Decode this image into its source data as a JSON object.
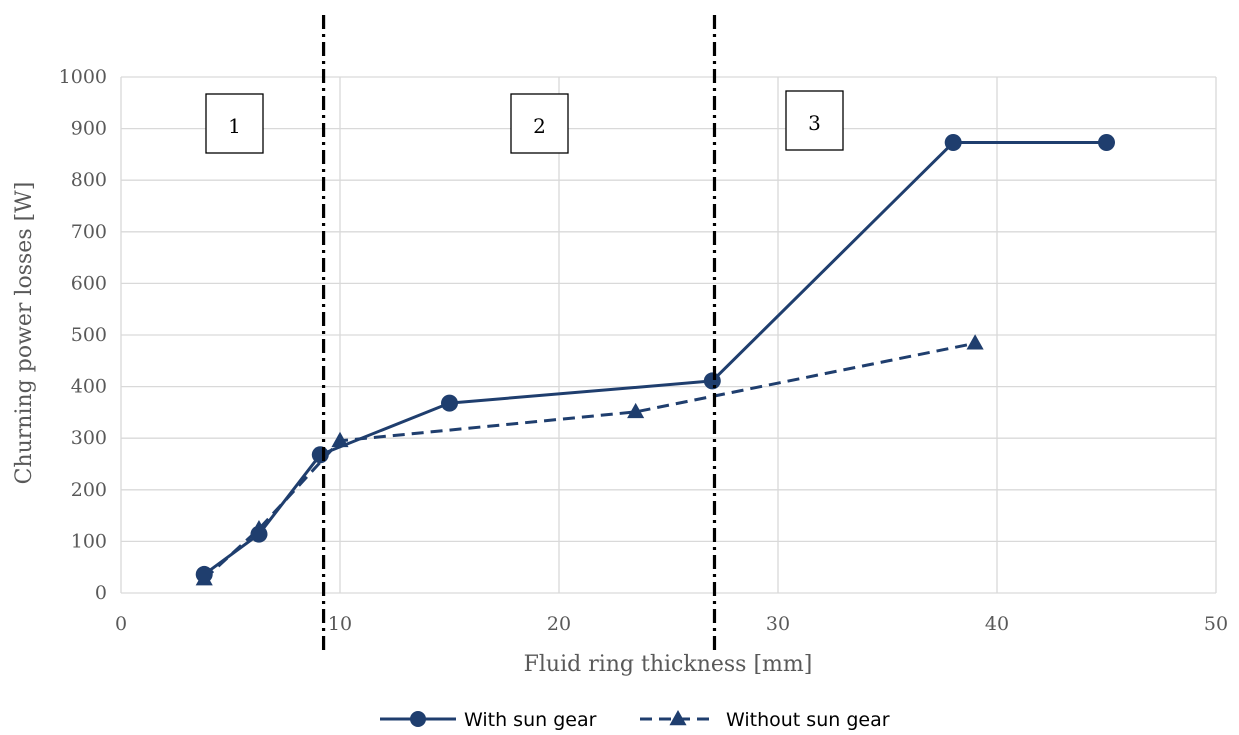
{
  "chart_data": {
    "type": "line",
    "xlabel": "Fluid ring thickness [mm]",
    "ylabel": "Churning power losses [W]",
    "xlim": [
      0,
      50
    ],
    "ylim": [
      0,
      1000
    ],
    "x_ticks": [
      "0",
      "10",
      "20",
      "30",
      "40",
      "50"
    ],
    "y_ticks": [
      "0",
      "100",
      "200",
      "300",
      "400",
      "500",
      "600",
      "700",
      "800",
      "900",
      "1000"
    ],
    "grid": true,
    "legend_position": "bottom",
    "series": [
      {
        "name": "With sun gear",
        "color": "#1f3e6e",
        "marker": "circle",
        "line_style": "solid",
        "points": [
          [
            3.8,
            36
          ],
          [
            6.3,
            114
          ],
          [
            9.1,
            268
          ],
          [
            15,
            368
          ],
          [
            27,
            411
          ],
          [
            38,
            873
          ],
          [
            45,
            873
          ]
        ]
      },
      {
        "name": "Without sun gear",
        "color": "#1f3e6e",
        "marker": "triangle",
        "line_style": "dashed",
        "points": [
          [
            3.8,
            27
          ],
          [
            6.3,
            124
          ],
          [
            10,
            295
          ],
          [
            23.5,
            351
          ],
          [
            39,
            484
          ]
        ]
      }
    ],
    "region_dividers": [
      {
        "x": 9.25,
        "style": "dash-dot"
      },
      {
        "x": 27.1,
        "style": "dash-dot"
      }
    ],
    "region_labels": [
      "1",
      "2",
      "3"
    ]
  }
}
